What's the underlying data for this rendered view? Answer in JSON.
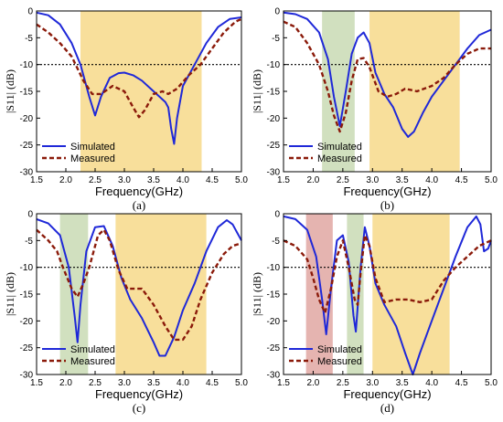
{
  "colors": {
    "simulated": "#1f28d8",
    "measured": "#8b1a0a",
    "band_yellow": "#f7d98a",
    "band_green": "#c9dbb4",
    "band_red": "#e0a7a2",
    "threshold": "#000000"
  },
  "chart_data": [
    {
      "type": "line",
      "caption": "(a)",
      "xlabel": "Frequency(GHz)",
      "ylabel": "|S11| (dB)",
      "xlim": [
        1.5,
        5.0
      ],
      "ylim": [
        -30,
        0
      ],
      "xticks": [
        "1.5",
        "2.0",
        "2.5",
        "3.0",
        "3.5",
        "4.0",
        "4.5",
        "5.0"
      ],
      "yticks": [
        "0",
        "-5",
        "-10",
        "-15",
        "-20",
        "-25",
        "-30"
      ],
      "threshold_db": -10,
      "bands": [
        {
          "from": 2.25,
          "to": 4.32,
          "color": "yellow"
        }
      ],
      "legend": {
        "placement": "bottom-left",
        "entries": [
          "Simulated",
          "Measured"
        ]
      },
      "series": [
        {
          "name": "Simulated",
          "style": "solid",
          "points": [
            [
              1.5,
              -0.3
            ],
            [
              1.7,
              -0.8
            ],
            [
              1.9,
              -2.5
            ],
            [
              2.1,
              -6
            ],
            [
              2.25,
              -10
            ],
            [
              2.4,
              -16
            ],
            [
              2.5,
              -19.5
            ],
            [
              2.6,
              -16
            ],
            [
              2.75,
              -12.5
            ],
            [
              2.9,
              -11.6
            ],
            [
              3.0,
              -11.5
            ],
            [
              3.15,
              -12
            ],
            [
              3.3,
              -13
            ],
            [
              3.45,
              -14.5
            ],
            [
              3.6,
              -16
            ],
            [
              3.7,
              -17
            ],
            [
              3.75,
              -18
            ],
            [
              3.8,
              -22
            ],
            [
              3.85,
              -24.8
            ],
            [
              3.9,
              -20
            ],
            [
              4.0,
              -14
            ],
            [
              4.2,
              -10
            ],
            [
              4.4,
              -6
            ],
            [
              4.6,
              -3
            ],
            [
              4.8,
              -1.5
            ],
            [
              5.0,
              -1.2
            ]
          ]
        },
        {
          "name": "Measured",
          "style": "dashed",
          "points": [
            [
              1.5,
              -2.5
            ],
            [
              1.7,
              -4
            ],
            [
              1.9,
              -6
            ],
            [
              2.1,
              -8.5
            ],
            [
              2.3,
              -13
            ],
            [
              2.45,
              -15.5
            ],
            [
              2.6,
              -15.5
            ],
            [
              2.8,
              -14
            ],
            [
              3.0,
              -15
            ],
            [
              3.15,
              -18
            ],
            [
              3.25,
              -19.8
            ],
            [
              3.35,
              -18.5
            ],
            [
              3.5,
              -15.5
            ],
            [
              3.65,
              -15
            ],
            [
              3.75,
              -15.5
            ],
            [
              3.9,
              -14.5
            ],
            [
              4.1,
              -12
            ],
            [
              4.3,
              -10
            ],
            [
              4.5,
              -7
            ],
            [
              4.7,
              -4
            ],
            [
              4.9,
              -2
            ],
            [
              5.0,
              -1.5
            ]
          ]
        }
      ]
    },
    {
      "type": "line",
      "caption": "(b)",
      "xlabel": "Frequency(GHz)",
      "ylabel": "|S11| (dB)",
      "xlim": [
        1.5,
        5.0
      ],
      "ylim": [
        -30,
        0
      ],
      "xticks": [
        "1.5",
        "2.0",
        "2.5",
        "3.0",
        "3.5",
        "4.0",
        "4.5",
        "5.0"
      ],
      "yticks": [
        "0",
        "-5",
        "-10",
        "-15",
        "-20",
        "-25",
        "-30"
      ],
      "threshold_db": -10,
      "bands": [
        {
          "from": 2.15,
          "to": 2.7,
          "color": "green"
        },
        {
          "from": 2.95,
          "to": 4.47,
          "color": "yellow"
        }
      ],
      "legend": {
        "placement": "bottom-left",
        "entries": [
          "Simulated",
          "Measured"
        ]
      },
      "series": [
        {
          "name": "Simulated",
          "style": "solid",
          "points": [
            [
              1.5,
              -0.3
            ],
            [
              1.7,
              -0.6
            ],
            [
              1.9,
              -1.5
            ],
            [
              2.1,
              -4
            ],
            [
              2.25,
              -9
            ],
            [
              2.35,
              -16
            ],
            [
              2.45,
              -21.5
            ],
            [
              2.55,
              -15
            ],
            [
              2.65,
              -8
            ],
            [
              2.75,
              -5
            ],
            [
              2.85,
              -4
            ],
            [
              2.95,
              -6
            ],
            [
              3.05,
              -11.5
            ],
            [
              3.2,
              -15.5
            ],
            [
              3.35,
              -18
            ],
            [
              3.5,
              -22
            ],
            [
              3.6,
              -23.5
            ],
            [
              3.7,
              -22.5
            ],
            [
              3.85,
              -19
            ],
            [
              4.0,
              -16
            ],
            [
              4.2,
              -13
            ],
            [
              4.4,
              -10
            ],
            [
              4.6,
              -7
            ],
            [
              4.8,
              -4.5
            ],
            [
              5.0,
              -3.5
            ]
          ]
        },
        {
          "name": "Measured",
          "style": "dashed",
          "points": [
            [
              1.5,
              -2
            ],
            [
              1.7,
              -3
            ],
            [
              1.9,
              -6
            ],
            [
              2.1,
              -10
            ],
            [
              2.25,
              -15
            ],
            [
              2.35,
              -19.5
            ],
            [
              2.45,
              -22.5
            ],
            [
              2.55,
              -19
            ],
            [
              2.65,
              -13
            ],
            [
              2.75,
              -9
            ],
            [
              2.85,
              -8.8
            ],
            [
              2.95,
              -10.5
            ],
            [
              3.1,
              -15
            ],
            [
              3.25,
              -16
            ],
            [
              3.4,
              -15.5
            ],
            [
              3.55,
              -14.5
            ],
            [
              3.75,
              -15
            ],
            [
              4.0,
              -14
            ],
            [
              4.2,
              -12.5
            ],
            [
              4.4,
              -10
            ],
            [
              4.6,
              -8
            ],
            [
              4.8,
              -7
            ],
            [
              5.0,
              -7
            ]
          ]
        }
      ]
    },
    {
      "type": "line",
      "caption": "(c)",
      "xlabel": "Frequency(GHz)",
      "ylabel": "|S11| (dB)",
      "xlim": [
        1.5,
        5.0
      ],
      "ylim": [
        -30,
        0
      ],
      "xticks": [
        "1.5",
        "2.0",
        "2.5",
        "3.0",
        "3.5",
        "4.0",
        "4.5",
        "5.0"
      ],
      "yticks": [
        "0",
        "-5",
        "-10",
        "-15",
        "-20",
        "-25",
        "-30"
      ],
      "threshold_db": -10,
      "bands": [
        {
          "from": 1.9,
          "to": 2.38,
          "color": "green"
        },
        {
          "from": 2.85,
          "to": 4.4,
          "color": "yellow"
        }
      ],
      "legend": {
        "placement": "bottom-left",
        "entries": [
          "Simulated",
          "Measured"
        ]
      },
      "series": [
        {
          "name": "Simulated",
          "style": "solid",
          "points": [
            [
              1.5,
              -1
            ],
            [
              1.7,
              -1.8
            ],
            [
              1.9,
              -4
            ],
            [
              2.05,
              -10
            ],
            [
              2.15,
              -19
            ],
            [
              2.2,
              -24
            ],
            [
              2.25,
              -17
            ],
            [
              2.35,
              -7
            ],
            [
              2.5,
              -2.5
            ],
            [
              2.65,
              -2.3
            ],
            [
              2.8,
              -6
            ],
            [
              2.95,
              -12
            ],
            [
              3.1,
              -16
            ],
            [
              3.3,
              -19.5
            ],
            [
              3.5,
              -24
            ],
            [
              3.6,
              -26.5
            ],
            [
              3.7,
              -26.5
            ],
            [
              3.85,
              -23
            ],
            [
              4.0,
              -18
            ],
            [
              4.2,
              -13
            ],
            [
              4.4,
              -7
            ],
            [
              4.6,
              -2.5
            ],
            [
              4.75,
              -1.2
            ],
            [
              4.85,
              -2
            ],
            [
              5.0,
              -5
            ]
          ]
        },
        {
          "name": "Measured",
          "style": "dashed",
          "points": [
            [
              1.5,
              -3
            ],
            [
              1.7,
              -5
            ],
            [
              1.85,
              -7
            ],
            [
              1.95,
              -10
            ],
            [
              2.1,
              -14
            ],
            [
              2.2,
              -15.5
            ],
            [
              2.3,
              -13
            ],
            [
              2.4,
              -10
            ],
            [
              2.55,
              -4
            ],
            [
              2.65,
              -3
            ],
            [
              2.75,
              -5
            ],
            [
              2.9,
              -10.5
            ],
            [
              3.05,
              -14
            ],
            [
              3.3,
              -14
            ],
            [
              3.5,
              -17
            ],
            [
              3.7,
              -21
            ],
            [
              3.85,
              -23.5
            ],
            [
              4.0,
              -23.5
            ],
            [
              4.15,
              -21
            ],
            [
              4.3,
              -16
            ],
            [
              4.5,
              -11
            ],
            [
              4.7,
              -7.5
            ],
            [
              4.85,
              -6
            ],
            [
              5.0,
              -5.5
            ]
          ]
        }
      ]
    },
    {
      "type": "line",
      "caption": "(d)",
      "xlabel": "Frequency(GHz)",
      "ylabel": "|S11| (dB)",
      "xlim": [
        1.5,
        5.0
      ],
      "ylim": [
        -30,
        0
      ],
      "xticks": [
        "1.5",
        "2.0",
        "2.5",
        "3.0",
        "3.5",
        "4.0",
        "4.5",
        "5.0"
      ],
      "yticks": [
        "0",
        "-5",
        "-10",
        "-15",
        "-20",
        "-25",
        "-30"
      ],
      "threshold_db": -10,
      "bands": [
        {
          "from": 1.88,
          "to": 2.33,
          "color": "red"
        },
        {
          "from": 2.57,
          "to": 2.85,
          "color": "green"
        },
        {
          "from": 3.0,
          "to": 4.3,
          "color": "yellow"
        }
      ],
      "legend": {
        "placement": "bottom-left",
        "entries": [
          "Simulated",
          "Measured"
        ]
      },
      "series": [
        {
          "name": "Simulated",
          "style": "solid",
          "points": [
            [
              1.5,
              -0.5
            ],
            [
              1.7,
              -1
            ],
            [
              1.9,
              -3
            ],
            [
              2.05,
              -8
            ],
            [
              2.15,
              -16
            ],
            [
              2.22,
              -22.5
            ],
            [
              2.3,
              -14
            ],
            [
              2.4,
              -5
            ],
            [
              2.5,
              -4
            ],
            [
              2.6,
              -9
            ],
            [
              2.68,
              -19
            ],
            [
              2.72,
              -22
            ],
            [
              2.8,
              -10
            ],
            [
              2.87,
              -2.5
            ],
            [
              2.95,
              -6
            ],
            [
              3.05,
              -13
            ],
            [
              3.2,
              -17
            ],
            [
              3.4,
              -21
            ],
            [
              3.55,
              -26
            ],
            [
              3.68,
              -30
            ],
            [
              3.8,
              -26
            ],
            [
              4.0,
              -20
            ],
            [
              4.2,
              -14
            ],
            [
              4.4,
              -8
            ],
            [
              4.6,
              -2.5
            ],
            [
              4.75,
              -0.5
            ],
            [
              4.82,
              -2
            ],
            [
              4.88,
              -7
            ],
            [
              4.95,
              -6.5
            ],
            [
              5.0,
              -5
            ]
          ]
        },
        {
          "name": "Measured",
          "style": "dashed",
          "points": [
            [
              1.5,
              -5
            ],
            [
              1.7,
              -6
            ],
            [
              1.9,
              -8.5
            ],
            [
              2.0,
              -12
            ],
            [
              2.1,
              -16
            ],
            [
              2.2,
              -18.5
            ],
            [
              2.3,
              -14
            ],
            [
              2.4,
              -8
            ],
            [
              2.5,
              -5
            ],
            [
              2.6,
              -10
            ],
            [
              2.7,
              -16
            ],
            [
              2.75,
              -17
            ],
            [
              2.8,
              -11
            ],
            [
              2.87,
              -4
            ],
            [
              2.95,
              -6
            ],
            [
              3.05,
              -12
            ],
            [
              3.2,
              -16.5
            ],
            [
              3.4,
              -16
            ],
            [
              3.6,
              -16
            ],
            [
              3.8,
              -16.5
            ],
            [
              4.0,
              -16
            ],
            [
              4.2,
              -12.5
            ],
            [
              4.4,
              -10
            ],
            [
              4.6,
              -8
            ],
            [
              4.8,
              -6
            ],
            [
              5.0,
              -5
            ]
          ]
        }
      ]
    }
  ]
}
